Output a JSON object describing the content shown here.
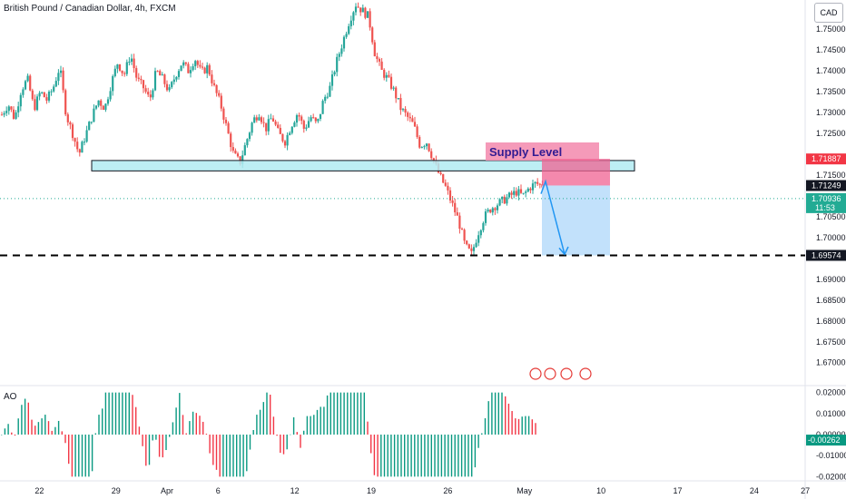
{
  "title": "British Pound / Canadian Dollar, 4h, FXCM",
  "currency": "CAD",
  "indicator_label": "AO",
  "supply_label": "Supply Level",
  "price_axis": [
    {
      "v": 1.75,
      "t": "1.75000"
    },
    {
      "v": 1.745,
      "t": "1.74500"
    },
    {
      "v": 1.74,
      "t": "1.74000"
    },
    {
      "v": 1.735,
      "t": "1.73500"
    },
    {
      "v": 1.73,
      "t": "1.73000"
    },
    {
      "v": 1.725,
      "t": "1.72500"
    },
    {
      "v": 1.715,
      "t": "1.71500"
    },
    {
      "v": 1.705,
      "t": "1.70500"
    },
    {
      "v": 1.7,
      "t": "1.70000"
    },
    {
      "v": 1.69,
      "t": "1.69000"
    },
    {
      "v": 1.685,
      "t": "1.68500"
    },
    {
      "v": 1.68,
      "t": "1.68000"
    },
    {
      "v": 1.675,
      "t": "1.67500"
    },
    {
      "v": 1.67,
      "t": "1.67000"
    }
  ],
  "price_tags": [
    {
      "v": 1.71887,
      "t": "1.71887",
      "bg": "#f23645",
      "fg": "#ffffff"
    },
    {
      "v": 1.71249,
      "t": "1.71249",
      "bg": "#131722",
      "fg": "#ffffff"
    },
    {
      "v": 1.70936,
      "t": "1.70936",
      "sub": "11:53",
      "bg": "#22ab94",
      "fg": "#ffffff"
    },
    {
      "v": 1.69574,
      "t": "1.69574",
      "bg": "#131722",
      "fg": "#ffffff"
    }
  ],
  "ao_axis": [
    {
      "v": 0.02,
      "t": "0.02000"
    },
    {
      "v": 0.01,
      "t": "0.01000"
    },
    {
      "v": 0.0,
      "t": "0.00000"
    },
    {
      "v": -0.01,
      "t": "-0.01000"
    },
    {
      "v": -0.02,
      "t": "-0.02000"
    }
  ],
  "ao_tag": {
    "v": -0.00262,
    "t": "-0.00262",
    "bg": "#089981"
  },
  "date_axis": [
    {
      "i": 7,
      "t": "22"
    },
    {
      "i": 22,
      "t": "29"
    },
    {
      "i": 32,
      "t": "Apr"
    },
    {
      "i": 42,
      "t": "6"
    },
    {
      "i": 57,
      "t": "12"
    },
    {
      "i": 72,
      "t": "19"
    },
    {
      "i": 87,
      "t": "26"
    },
    {
      "i": 102,
      "t": "May"
    },
    {
      "i": 117,
      "t": "10"
    },
    {
      "i": 132,
      "t": "17"
    },
    {
      "i": 147,
      "t": "24"
    },
    {
      "i": 157,
      "t": "27"
    }
  ],
  "colors": {
    "up": "#26a69a",
    "down": "#ef5350",
    "zone_fill": "#b2ebf2",
    "supply_fill": "#f48fb1",
    "supply_text": "#311b92",
    "target_fill": "#bbdefb",
    "arrow": "#2196f3"
  },
  "chart_data": {
    "type": "candlestick",
    "title": "British Pound / Canadian Dollar, 4h, FXCM",
    "ylim": [
      1.6645,
      1.757
    ],
    "close_path": [
      1.7295,
      1.732,
      1.7285,
      1.7355,
      1.738,
      1.731,
      1.735,
      1.733,
      1.736,
      1.741,
      1.7295,
      1.725,
      1.72,
      1.7245,
      1.729,
      1.733,
      1.731,
      1.737,
      1.742,
      1.739,
      1.744,
      1.738,
      1.736,
      1.733,
      1.74,
      1.738,
      1.735,
      1.739,
      1.742,
      1.74,
      1.743,
      1.7395,
      1.741,
      1.736,
      1.732,
      1.726,
      1.72,
      1.718,
      1.723,
      1.728,
      1.73,
      1.726,
      1.729,
      1.725,
      1.723,
      1.727,
      1.73,
      1.726,
      1.729,
      1.727,
      1.733,
      1.736,
      1.742,
      1.747,
      1.752,
      1.756,
      1.7545,
      1.753,
      1.744,
      1.74,
      1.738,
      1.735,
      1.731,
      1.729,
      1.727,
      1.722,
      1.723,
      1.719,
      1.715,
      1.712,
      1.708,
      1.704,
      1.698,
      1.696,
      1.701,
      1.705,
      1.707,
      1.708,
      1.709,
      1.71,
      1.711,
      1.71,
      1.712,
      1.713,
      1.7125
    ],
    "zone": [
      1.716,
      1.7185
    ],
    "supply_box": [
      1.7125,
      1.7189
    ],
    "target_box": [
      1.69574,
      1.7125
    ],
    "dashed_level": 1.69574,
    "ao_ylim": [
      -0.022,
      0.022
    ]
  }
}
